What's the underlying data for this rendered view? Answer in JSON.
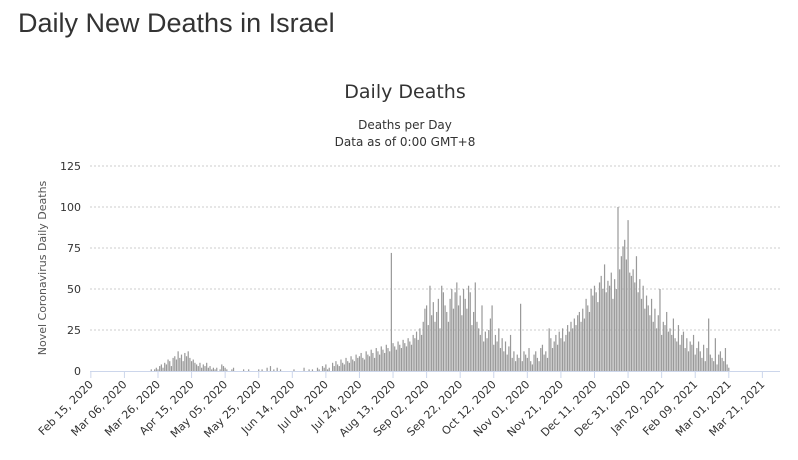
{
  "page_title": "Daily New Deaths in Israel",
  "chart_data": {
    "type": "bar",
    "title": "Daily Deaths",
    "subtitle_lines": [
      "Deaths per Day",
      "Data as of 0:00 GMT+8"
    ],
    "ylabel": "Novel Coronavirus Daily Deaths",
    "xlabel": "",
    "ylim": [
      0,
      125
    ],
    "y_ticks": [
      0,
      25,
      50,
      75,
      100,
      125
    ],
    "grid": true,
    "start_date": "Feb 15, 2020",
    "num_days": 411,
    "x_tick_labels": [
      "Feb 15, 2020",
      "Mar 06, 2020",
      "Mar 26, 2020",
      "Apr 15, 2020",
      "May 05, 2020",
      "May 25, 2020",
      "Jun 14, 2020",
      "Jul 04, 2020",
      "Jul 24, 2020",
      "Aug 13, 2020",
      "Sep 02, 2020",
      "Sep 22, 2020",
      "Oct 12, 2020",
      "Nov 01, 2020",
      "Nov 21, 2020",
      "Dec 11, 2020",
      "Dec 31, 2020",
      "Jan 20, 2021",
      "Feb 09, 2021",
      "Mar 01, 2021",
      "Mar 21, 2021"
    ],
    "x_tick_interval_days": 20,
    "series": [
      {
        "name": "Daily Deaths",
        "color": "#999999",
        "values": [
          0,
          0,
          0,
          0,
          0,
          0,
          0,
          0,
          0,
          0,
          0,
          0,
          0,
          0,
          0,
          0,
          0,
          0,
          0,
          0,
          0,
          0,
          0,
          0,
          0,
          0,
          0,
          0,
          0,
          0,
          0,
          0,
          0,
          0,
          0,
          0,
          1,
          0,
          1,
          2,
          1,
          3,
          4,
          2,
          5,
          4,
          7,
          6,
          3,
          8,
          9,
          7,
          12,
          8,
          10,
          6,
          11,
          9,
          12,
          8,
          6,
          7,
          5,
          4,
          3,
          5,
          2,
          4,
          3,
          5,
          2,
          3,
          1,
          2,
          1,
          2,
          0,
          1,
          4,
          3,
          2,
          1,
          0,
          0,
          1,
          2,
          0,
          0,
          0,
          0,
          0,
          1,
          0,
          0,
          1,
          0,
          0,
          0,
          0,
          0,
          1,
          0,
          1,
          0,
          0,
          2,
          0,
          3,
          0,
          1,
          0,
          2,
          0,
          1,
          0,
          0,
          0,
          0,
          0,
          0,
          0,
          1,
          0,
          0,
          0,
          0,
          0,
          2,
          0,
          0,
          1,
          0,
          1,
          0,
          0,
          2,
          1,
          0,
          3,
          2,
          4,
          1,
          2,
          0,
          5,
          3,
          6,
          4,
          3,
          7,
          5,
          4,
          8,
          6,
          5,
          9,
          7,
          6,
          10,
          8,
          9,
          11,
          8,
          7,
          12,
          10,
          9,
          13,
          11,
          8,
          14,
          12,
          10,
          15,
          13,
          11,
          16,
          14,
          12,
          72,
          17,
          15,
          13,
          18,
          16,
          14,
          19,
          17,
          15,
          20,
          18,
          16,
          22,
          20,
          24,
          19,
          26,
          22,
          30,
          38,
          40,
          28,
          52,
          34,
          42,
          30,
          36,
          44,
          26,
          52,
          48,
          40,
          36,
          30,
          44,
          50,
          38,
          48,
          54,
          40,
          46,
          34,
          50,
          44,
          38,
          52,
          48,
          28,
          36,
          54,
          30,
          26,
          22,
          40,
          18,
          24,
          20,
          25,
          32,
          40,
          16,
          22,
          18,
          26,
          14,
          20,
          12,
          18,
          10,
          15,
          22,
          8,
          12,
          6,
          10,
          8,
          41,
          6,
          12,
          10,
          8,
          14,
          6,
          4,
          10,
          12,
          8,
          6,
          14,
          16,
          10,
          12,
          8,
          26,
          20,
          14,
          18,
          22,
          16,
          24,
          20,
          26,
          18,
          22,
          28,
          24,
          30,
          26,
          32,
          28,
          34,
          36,
          30,
          38,
          32,
          44,
          40,
          36,
          50,
          46,
          52,
          48,
          42,
          54,
          58,
          50,
          65,
          48,
          55,
          52,
          60,
          44,
          56,
          50,
          100,
          62,
          70,
          76,
          80,
          68,
          92,
          60,
          58,
          62,
          54,
          70,
          48,
          56,
          44,
          52,
          38,
          46,
          40,
          34,
          44,
          30,
          38,
          26,
          34,
          50,
          22,
          30,
          28,
          36,
          24,
          26,
          22,
          32,
          20,
          18,
          28,
          16,
          22,
          24,
          14,
          20,
          12,
          18,
          16,
          22,
          10,
          14,
          18,
          12,
          8,
          16,
          6,
          14,
          32,
          10,
          8,
          6,
          20,
          4,
          10,
          12,
          8,
          6,
          14,
          4,
          2
        ]
      }
    ]
  }
}
